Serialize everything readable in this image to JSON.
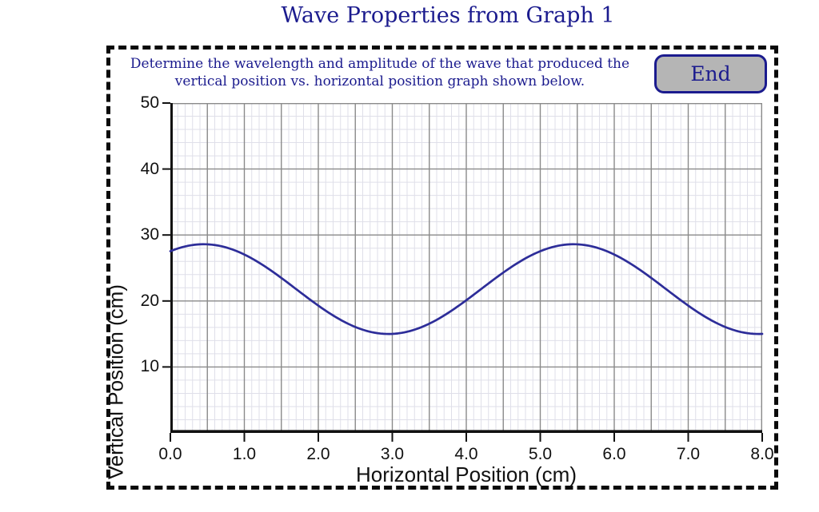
{
  "title": "Wave Properties from Graph 1",
  "panel": {
    "instruction_line1": "Determine the wavelength and amplitude of the wave that produced the",
    "instruction_line2": "vertical position vs. horizontal position graph shown below.",
    "end_button_label": "End"
  },
  "colors": {
    "heading_text": "#1b1b8e",
    "wave_line": "#2d2d99",
    "grid_major": "#8a8a8a",
    "grid_minor": "#dfdfe9",
    "axis": "#111111",
    "button_fill": "#b5b5b5",
    "dashed_border": "#0a0a0a",
    "tick_text": "#111111"
  },
  "chart_data": {
    "type": "line",
    "title": "",
    "xlabel": "Horizontal Position (cm)",
    "ylabel": "Vertical Position (cm)",
    "xlim": [
      0.0,
      8.0
    ],
    "ylim": [
      0,
      50
    ],
    "x_tick_labels": [
      "0.0",
      "1.0",
      "2.0",
      "3.0",
      "4.0",
      "5.0",
      "6.0",
      "7.0",
      "8.0"
    ],
    "y_tick_labels": [
      "10",
      "20",
      "30",
      "40",
      "50"
    ],
    "grid": {
      "on": true,
      "x_major_step_cm": 0.5,
      "x_minor_step_cm": 0.1,
      "y_major_step_cm": 10,
      "y_minor_step_cm": 2
    },
    "legend": "none",
    "series": [
      {
        "name": "wave",
        "model": "y = midline + amplitude * cos(2*PI*(x - crest_x)/wavelength)",
        "midline_cm": 21.8,
        "amplitude_cm": 6.8,
        "wavelength_cm": 5.0,
        "crest_x_cm": 0.45,
        "crest_y_cm": 28.6,
        "trough_y_cm": 15.0,
        "crest_positions_cm": [
          0.45,
          5.45
        ],
        "trough_positions_cm": [
          2.95,
          7.95
        ],
        "y_at_x0_cm": 27.6
      }
    ]
  }
}
